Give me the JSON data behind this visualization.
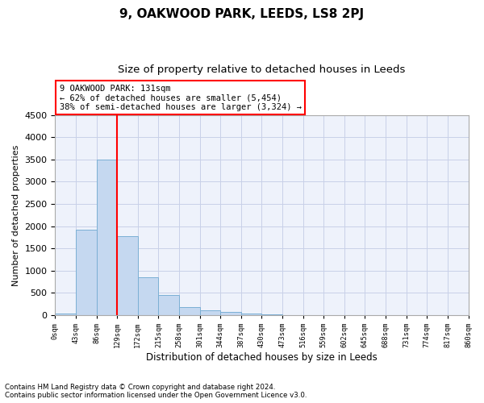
{
  "title": "9, OAKWOOD PARK, LEEDS, LS8 2PJ",
  "subtitle": "Size of property relative to detached houses in Leeds",
  "xlabel": "Distribution of detached houses by size in Leeds",
  "ylabel": "Number of detached properties",
  "bar_values": [
    30,
    1920,
    3500,
    1770,
    850,
    450,
    175,
    105,
    65,
    30,
    15,
    5,
    5,
    5,
    5,
    5,
    5,
    5,
    5,
    5
  ],
  "x_labels": [
    "0sqm",
    "43sqm",
    "86sqm",
    "129sqm",
    "172sqm",
    "215sqm",
    "258sqm",
    "301sqm",
    "344sqm",
    "387sqm",
    "430sqm",
    "473sqm",
    "516sqm",
    "559sqm",
    "602sqm",
    "645sqm",
    "688sqm",
    "731sqm",
    "774sqm",
    "817sqm",
    "860sqm"
  ],
  "ylim": [
    0,
    4500
  ],
  "yticks": [
    0,
    500,
    1000,
    1500,
    2000,
    2500,
    3000,
    3500,
    4000,
    4500
  ],
  "bar_color": "#c5d8f0",
  "bar_edge_color": "#7bafd4",
  "vline_color": "red",
  "annotation_text": "9 OAKWOOD PARK: 131sqm\n← 62% of detached houses are smaller (5,454)\n38% of semi-detached houses are larger (3,324) →",
  "annotation_box_color": "white",
  "annotation_box_edge_color": "red",
  "background_color": "#eef2fb",
  "grid_color": "#c8d0e8",
  "footer_line1": "Contains HM Land Registry data © Crown copyright and database right 2024.",
  "footer_line2": "Contains public sector information licensed under the Open Government Licence v3.0.",
  "title_fontsize": 11,
  "subtitle_fontsize": 9.5,
  "xlabel_fontsize": 8.5,
  "ylabel_fontsize": 8
}
